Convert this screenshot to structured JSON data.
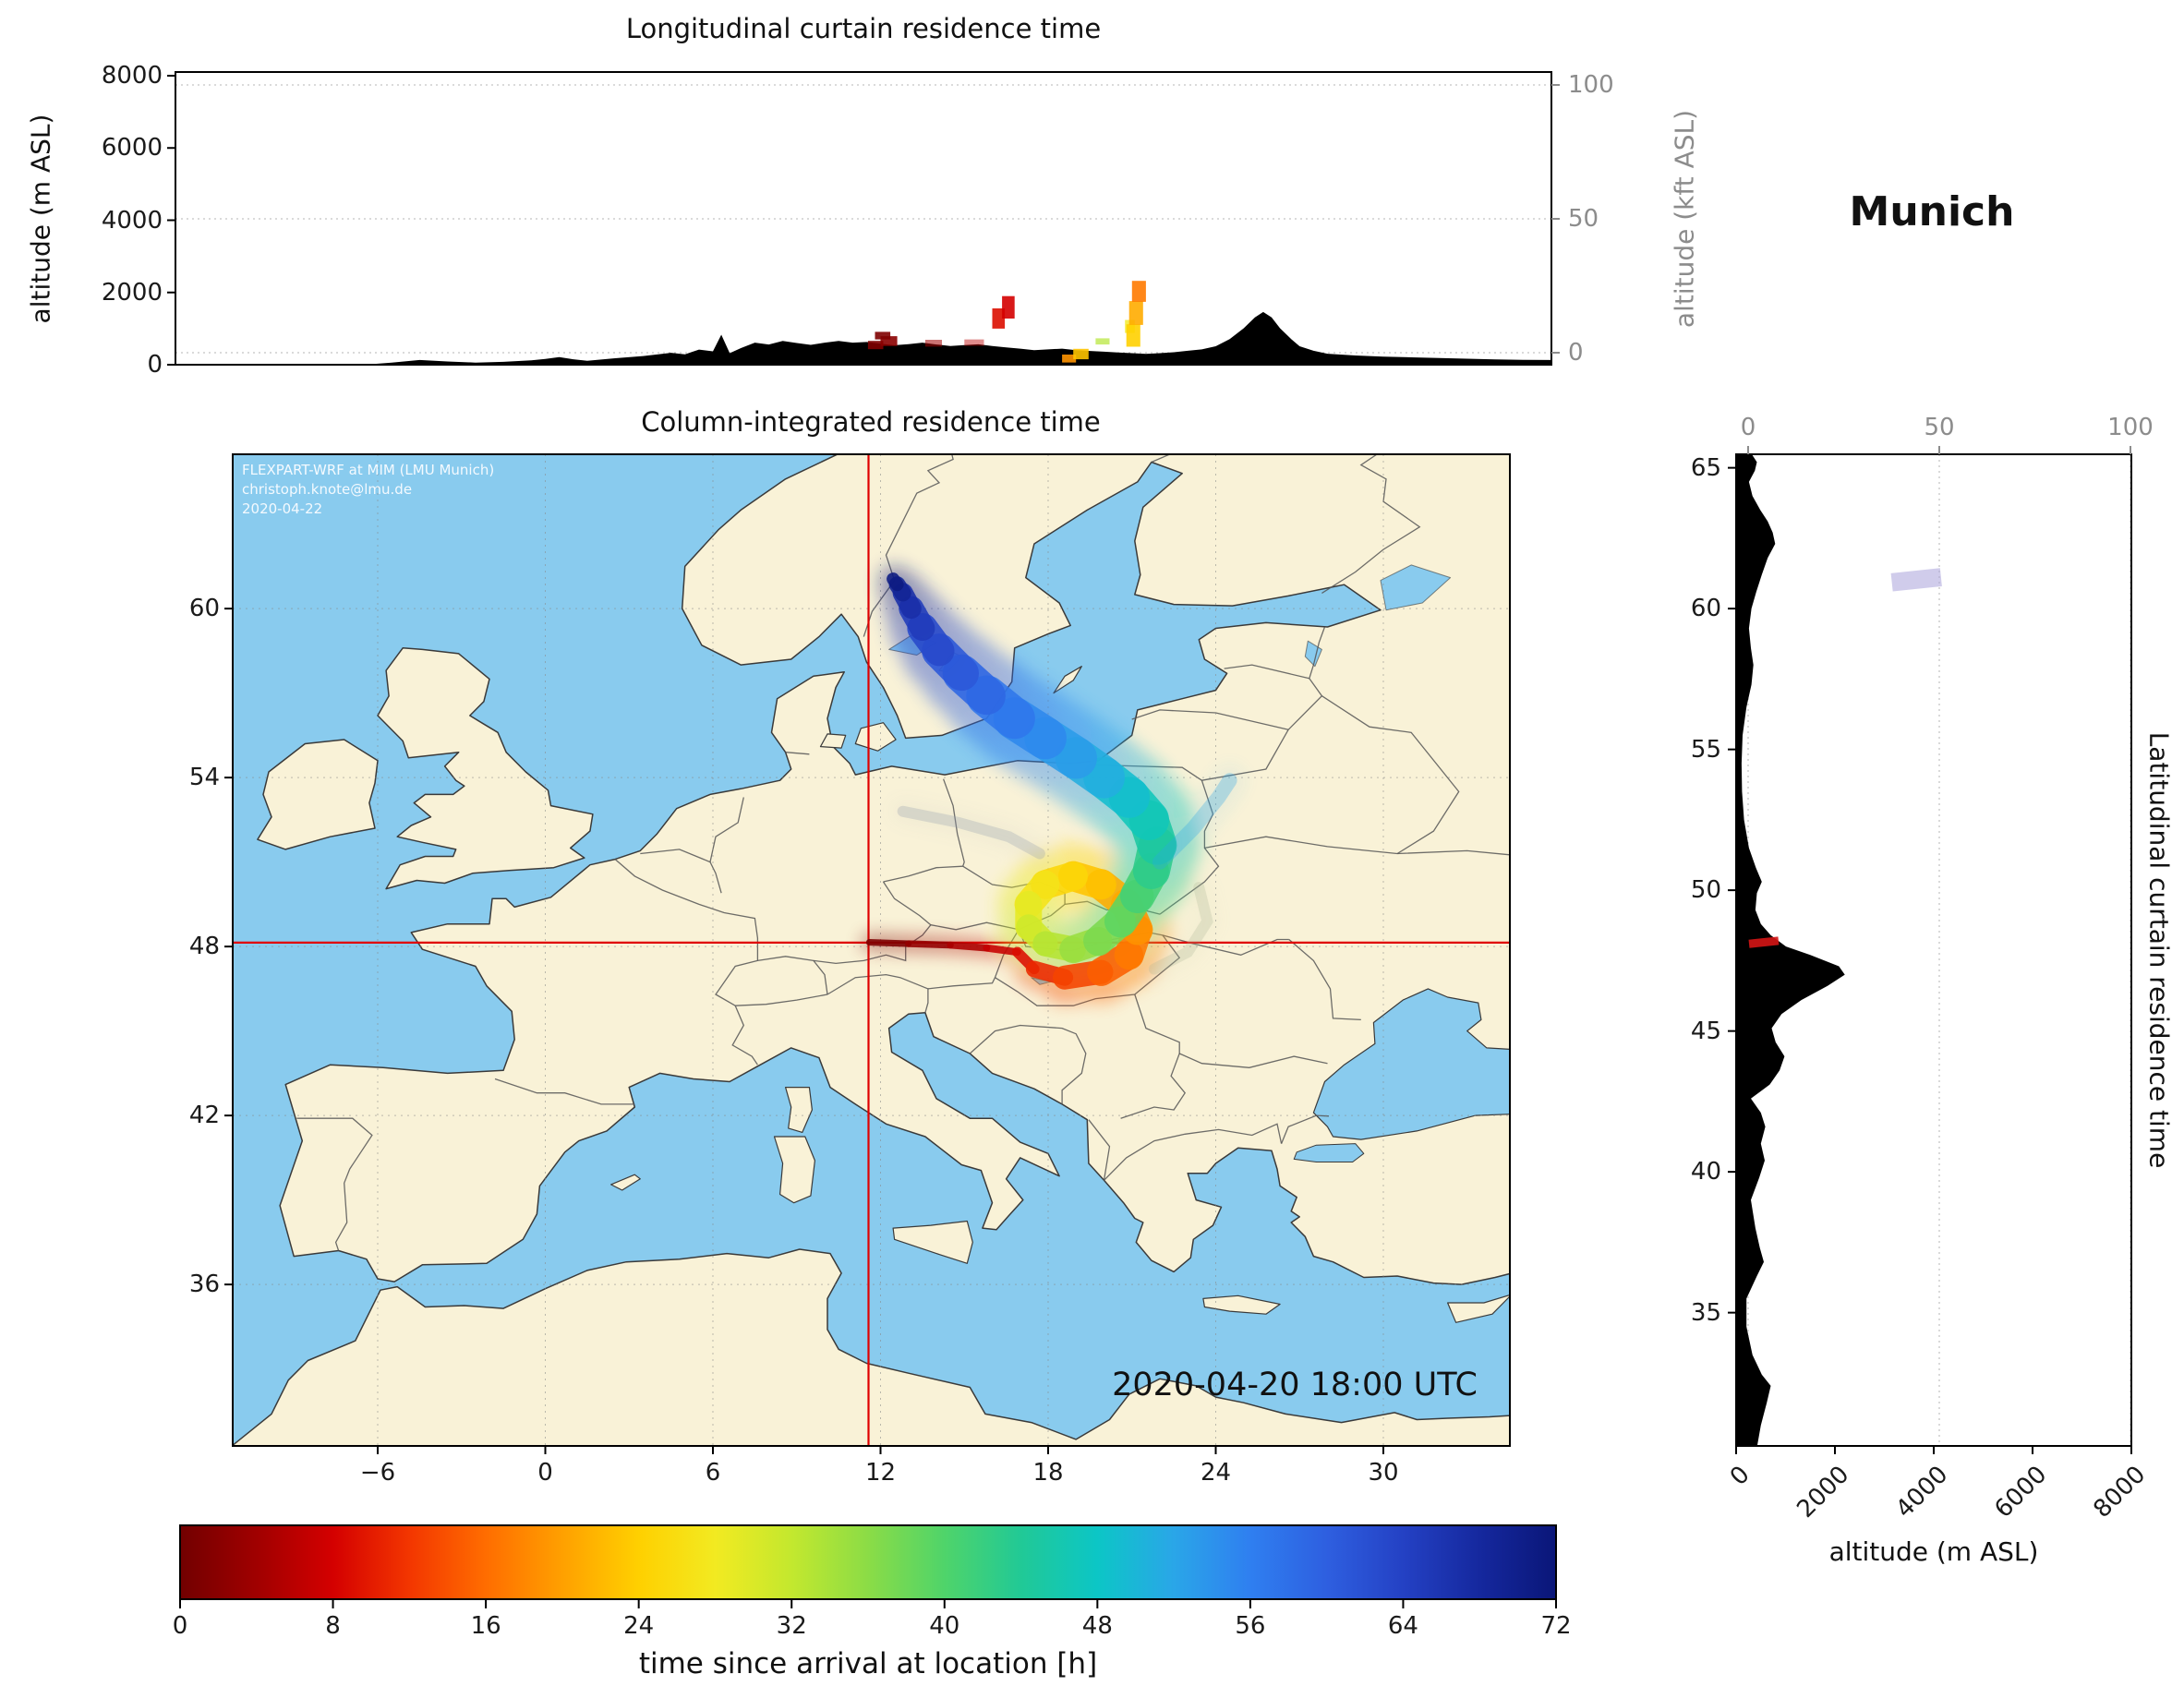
{
  "location_label": "Munich",
  "chart_data": [
    {
      "id": "longitudinal_curtain",
      "type": "heatmap",
      "title": "Longitudinal curtain residence time",
      "ylabel": "altitude (m ASL)",
      "ylabel_right": "altitude (kft ASL)",
      "ylim_m": [
        0,
        8000
      ],
      "yticks_m": [
        0,
        2000,
        4000,
        6000,
        8000
      ],
      "yticks_kft": [
        0,
        50,
        100
      ],
      "xlim_lon": [
        -13.2,
        36.0
      ],
      "terrain_lon_elev": [
        [
          -13.2,
          0
        ],
        [
          -6.5,
          0
        ],
        [
          -5.5,
          60
        ],
        [
          -4.5,
          130
        ],
        [
          -3.5,
          90
        ],
        [
          -2.5,
          60
        ],
        [
          -1.5,
          80
        ],
        [
          -0.5,
          120
        ],
        [
          0,
          160
        ],
        [
          0.5,
          210
        ],
        [
          1,
          150
        ],
        [
          1.5,
          110
        ],
        [
          2.5,
          180
        ],
        [
          3.5,
          240
        ],
        [
          4.5,
          330
        ],
        [
          5,
          290
        ],
        [
          5.5,
          420
        ],
        [
          6,
          370
        ],
        [
          6.3,
          830
        ],
        [
          6.6,
          320
        ],
        [
          7,
          460
        ],
        [
          7.5,
          610
        ],
        [
          8,
          560
        ],
        [
          8.5,
          660
        ],
        [
          9,
          600
        ],
        [
          9.5,
          550
        ],
        [
          10,
          610
        ],
        [
          10.5,
          660
        ],
        [
          11,
          610
        ],
        [
          11.5,
          630
        ],
        [
          12,
          580
        ],
        [
          12.5,
          540
        ],
        [
          13,
          570
        ],
        [
          13.5,
          610
        ],
        [
          14,
          560
        ],
        [
          14.5,
          520
        ],
        [
          15,
          545
        ],
        [
          15.5,
          565
        ],
        [
          16,
          520
        ],
        [
          16.5,
          480
        ],
        [
          17,
          445
        ],
        [
          17.5,
          405
        ],
        [
          18,
          425
        ],
        [
          18.5,
          445
        ],
        [
          19,
          405
        ],
        [
          19.5,
          380
        ],
        [
          20,
          360
        ],
        [
          20.5,
          340
        ],
        [
          21,
          320
        ],
        [
          21.5,
          300
        ],
        [
          22,
          320
        ],
        [
          22.5,
          345
        ],
        [
          23,
          385
        ],
        [
          23.5,
          425
        ],
        [
          24,
          510
        ],
        [
          24.5,
          710
        ],
        [
          25,
          1010
        ],
        [
          25.4,
          1310
        ],
        [
          25.7,
          1460
        ],
        [
          26,
          1310
        ],
        [
          26.3,
          1010
        ],
        [
          26.7,
          710
        ],
        [
          27,
          510
        ],
        [
          27.5,
          385
        ],
        [
          28,
          305
        ],
        [
          29,
          255
        ],
        [
          30,
          225
        ],
        [
          31,
          205
        ],
        [
          32,
          185
        ],
        [
          33,
          165
        ],
        [
          34,
          145
        ],
        [
          35,
          135
        ],
        [
          36,
          130
        ]
      ],
      "cells": [
        {
          "lon": [
            11.55,
            12.1
          ],
          "alt": [
            430,
            660
          ],
          "time_h": 1
        },
        {
          "lon": [
            12.0,
            12.6
          ],
          "alt": [
            520,
            790
          ],
          "time_h": 2
        },
        {
          "lon": [
            11.8,
            12.35
          ],
          "alt": [
            700,
            910
          ],
          "time_h": 1
        },
        {
          "lon": [
            13.6,
            14.2
          ],
          "alt": [
            500,
            690
          ],
          "time_h": 4,
          "opacity": 0.55
        },
        {
          "lon": [
            15.0,
            15.7
          ],
          "alt": [
            520,
            700
          ],
          "time_h": 6,
          "opacity": 0.45
        },
        {
          "lon": [
            16.0,
            16.45
          ],
          "alt": [
            1000,
            1560
          ],
          "time_h": 9
        },
        {
          "lon": [
            16.35,
            16.8
          ],
          "alt": [
            1280,
            1900
          ],
          "time_h": 8
        },
        {
          "lon": [
            18.5,
            19.0
          ],
          "alt": [
            60,
            280
          ],
          "time_h": 19
        },
        {
          "lon": [
            18.9,
            19.45
          ],
          "alt": [
            150,
            440
          ],
          "time_h": 23
        },
        {
          "lon": [
            19.7,
            20.2
          ],
          "alt": [
            560,
            730
          ],
          "time_h": 33,
          "opacity": 0.7
        },
        {
          "lon": [
            20.75,
            21.1
          ],
          "alt": [
            880,
            1240
          ],
          "time_h": 28,
          "opacity": 0.8
        },
        {
          "lon": [
            20.8,
            21.3
          ],
          "alt": [
            500,
            1120
          ],
          "time_h": 24
        },
        {
          "lon": [
            20.9,
            21.4
          ],
          "alt": [
            1100,
            1760
          ],
          "time_h": 21
        },
        {
          "lon": [
            21.0,
            21.5
          ],
          "alt": [
            1740,
            2320
          ],
          "time_h": 17
        }
      ]
    },
    {
      "id": "column_integrated_map",
      "type": "map",
      "title": "Column-integrated residence time",
      "xticks_lon": [
        -6,
        0,
        6,
        12,
        18,
        24,
        30
      ],
      "yticks_lat": [
        60,
        54,
        48,
        42,
        36
      ],
      "xlim_lon": [
        -11.2,
        34.5
      ],
      "ylim_lat": [
        30.3,
        65.5
      ],
      "timestamp": "2020-04-20 18:00 UTC",
      "watermark_lines": [
        "FLEXPART-WRF at MIM (LMU Munich)",
        "christoph.knote@lmu.de",
        "2020-04-22"
      ],
      "receptor": {
        "name": "Munich",
        "lon": 11.57,
        "lat": 48.14
      },
      "trajectory_t_lon_lat": [
        [
          0,
          11.6,
          48.15
        ],
        [
          2,
          13.0,
          48.1
        ],
        [
          4,
          14.5,
          48.05
        ],
        [
          6,
          15.8,
          47.95
        ],
        [
          8,
          16.9,
          47.8
        ],
        [
          10,
          17.5,
          47.2
        ],
        [
          12,
          18.6,
          46.9
        ],
        [
          14,
          19.9,
          47.1
        ],
        [
          16,
          20.9,
          47.7
        ],
        [
          18,
          21.2,
          48.6
        ],
        [
          20,
          20.8,
          49.5
        ],
        [
          22,
          19.9,
          50.2
        ],
        [
          24,
          18.9,
          50.5
        ],
        [
          26,
          17.9,
          50.2
        ],
        [
          28,
          17.3,
          49.5
        ],
        [
          30,
          17.3,
          48.7
        ],
        [
          32,
          17.9,
          48.1
        ],
        [
          34,
          18.9,
          47.9
        ],
        [
          36,
          19.8,
          48.2
        ],
        [
          38,
          20.6,
          48.9
        ],
        [
          40,
          21.2,
          49.8
        ],
        [
          42,
          21.7,
          50.7
        ],
        [
          44,
          21.9,
          51.6
        ],
        [
          46,
          21.6,
          52.5
        ],
        [
          48,
          20.9,
          53.3
        ],
        [
          50,
          20.0,
          54.0
        ],
        [
          52,
          19.0,
          54.7
        ],
        [
          54,
          17.9,
          55.4
        ],
        [
          56,
          16.8,
          56.1
        ],
        [
          58,
          15.8,
          56.9
        ],
        [
          60,
          14.9,
          57.7
        ],
        [
          62,
          14.1,
          58.5
        ],
        [
          64,
          13.5,
          59.3
        ],
        [
          66,
          13.1,
          60.0
        ],
        [
          68,
          12.8,
          60.55
        ],
        [
          70,
          12.6,
          60.85
        ],
        [
          72,
          12.45,
          61.05
        ]
      ],
      "filaments": [
        {
          "label": "northeast-streak",
          "time_h": 52,
          "opacity": 0.3,
          "width": 16,
          "lonlat": [
            [
              22.0,
              51.0
            ],
            [
              23.2,
              52.2
            ],
            [
              24.1,
              53.3
            ],
            [
              24.5,
              53.9
            ]
          ]
        },
        {
          "label": "west-wisp",
          "color": "#8e9cab",
          "opacity": 0.28,
          "width": 12,
          "lonlat": [
            [
              12.8,
              52.8
            ],
            [
              14.8,
              52.4
            ],
            [
              16.6,
              51.9
            ],
            [
              17.7,
              51.3
            ]
          ]
        },
        {
          "label": "east-wisp",
          "color": "#a8b294",
          "opacity": 0.25,
          "width": 12,
          "lonlat": [
            [
              21.8,
              47.2
            ],
            [
              23.0,
              47.8
            ],
            [
              23.7,
              48.9
            ],
            [
              23.4,
              50.1
            ]
          ]
        }
      ],
      "colors": {
        "ocean": "#89cbee",
        "land": "#f9f2d7",
        "coast": "#3a3a3a",
        "border": "#555555",
        "crosshair": "#e00000",
        "gridline": "#888888"
      }
    },
    {
      "id": "latitudinal_curtain",
      "type": "heatmap",
      "title": "Latitudinal curtain residence time",
      "xlabel": "altitude (m ASL)",
      "xlim_m": [
        0,
        8000
      ],
      "xticks_m": [
        0,
        2000,
        4000,
        6000,
        8000
      ],
      "xticks_kft": [
        0,
        50,
        100
      ],
      "yticks_lat": [
        65,
        60,
        55,
        50,
        45,
        40,
        35
      ],
      "ylim_lat": [
        30.3,
        65.5
      ],
      "terrain_lat_elev": [
        [
          30.3,
          430
        ],
        [
          31,
          500
        ],
        [
          31.8,
          620
        ],
        [
          32.4,
          700
        ],
        [
          32.8,
          520
        ],
        [
          33.5,
          330
        ],
        [
          34.5,
          210
        ],
        [
          35.5,
          210
        ],
        [
          36.3,
          420
        ],
        [
          36.8,
          560
        ],
        [
          37.3,
          480
        ],
        [
          38,
          390
        ],
        [
          39,
          300
        ],
        [
          39.8,
          470
        ],
        [
          40.4,
          580
        ],
        [
          41,
          500
        ],
        [
          41.6,
          590
        ],
        [
          42.1,
          500
        ],
        [
          42.6,
          300
        ],
        [
          43.1,
          680
        ],
        [
          43.6,
          880
        ],
        [
          44.1,
          980
        ],
        [
          44.6,
          800
        ],
        [
          45.1,
          720
        ],
        [
          45.6,
          920
        ],
        [
          46.1,
          1320
        ],
        [
          46.6,
          1850
        ],
        [
          47.0,
          2200
        ],
        [
          47.3,
          2080
        ],
        [
          47.7,
          1500
        ],
        [
          48.0,
          1010
        ],
        [
          48.4,
          700
        ],
        [
          48.8,
          500
        ],
        [
          49.3,
          390
        ],
        [
          49.9,
          420
        ],
        [
          50.3,
          520
        ],
        [
          50.8,
          400
        ],
        [
          51.5,
          260
        ],
        [
          52.5,
          160
        ],
        [
          53.5,
          120
        ],
        [
          54.5,
          110
        ],
        [
          55.5,
          130
        ],
        [
          56.5,
          210
        ],
        [
          57.3,
          310
        ],
        [
          58,
          350
        ],
        [
          58.6,
          300
        ],
        [
          59.3,
          260
        ],
        [
          60,
          310
        ],
        [
          60.6,
          410
        ],
        [
          61.2,
          520
        ],
        [
          61.8,
          640
        ],
        [
          62.3,
          790
        ],
        [
          62.7,
          740
        ],
        [
          63.1,
          640
        ],
        [
          63.5,
          490
        ],
        [
          64,
          330
        ],
        [
          64.5,
          260
        ],
        [
          64.9,
          380
        ],
        [
          65.2,
          420
        ],
        [
          65.5,
          310
        ]
      ],
      "cells": [
        {
          "lat": [
            60.7,
            61.35
          ],
          "alt": [
            3150,
            4150
          ],
          "color": "#a9a2db",
          "opacity": 0.55
        },
        {
          "lat": [
            48.0,
            48.3
          ],
          "alt": [
            260,
            860
          ],
          "color": "#d41515",
          "opacity": 0.9
        }
      ]
    },
    {
      "id": "time_colorbar",
      "type": "colorbar",
      "label": "time since arrival at location [h]",
      "unit": "h",
      "range": [
        0,
        72
      ],
      "ticks": [
        0,
        8,
        16,
        24,
        32,
        40,
        48,
        56,
        64,
        72
      ],
      "stops": [
        {
          "t": 0,
          "color": "#720000"
        },
        {
          "t": 4,
          "color": "#a00000"
        },
        {
          "t": 8,
          "color": "#d40000"
        },
        {
          "t": 12,
          "color": "#f33600"
        },
        {
          "t": 16,
          "color": "#ff6d00"
        },
        {
          "t": 20,
          "color": "#ffa000"
        },
        {
          "t": 24,
          "color": "#ffd000"
        },
        {
          "t": 28,
          "color": "#f2ea21"
        },
        {
          "t": 32,
          "color": "#c3e82e"
        },
        {
          "t": 36,
          "color": "#8bdc46"
        },
        {
          "t": 40,
          "color": "#4fd46a"
        },
        {
          "t": 44,
          "color": "#21c996"
        },
        {
          "t": 48,
          "color": "#0cc6c6"
        },
        {
          "t": 52,
          "color": "#2aa6e8"
        },
        {
          "t": 56,
          "color": "#2f7ff0"
        },
        {
          "t": 60,
          "color": "#2e5fe0"
        },
        {
          "t": 64,
          "color": "#2441c4"
        },
        {
          "t": 68,
          "color": "#15289e"
        },
        {
          "t": 72,
          "color": "#0a1678"
        }
      ]
    }
  ]
}
